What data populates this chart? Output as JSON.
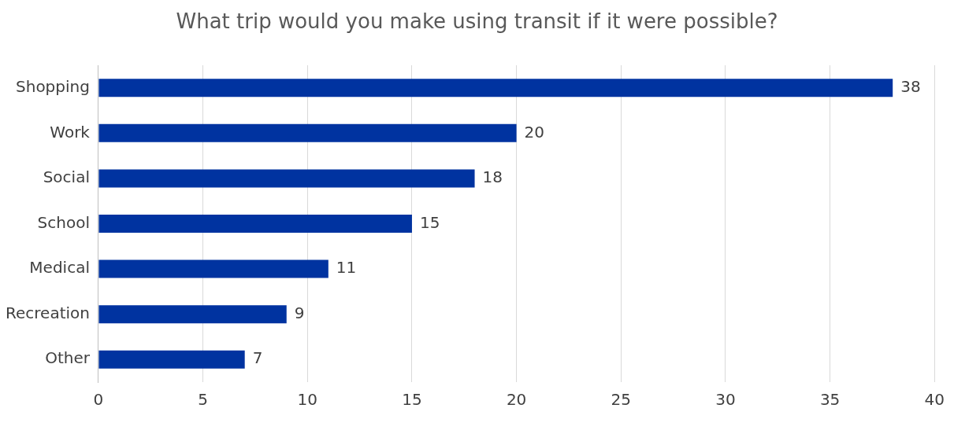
{
  "chart_data": {
    "type": "bar",
    "orientation": "horizontal",
    "title": "What trip would you make using transit if it were possible?",
    "categories": [
      "Shopping",
      "Work",
      "Social",
      "School",
      "Medical",
      "Recreation",
      "Other"
    ],
    "values": [
      38,
      20,
      18,
      15,
      11,
      9,
      7
    ],
    "color": "#0033a0",
    "xlim": [
      0,
      40
    ],
    "xticks": [
      0,
      5,
      10,
      15,
      20,
      25,
      30,
      35,
      40
    ],
    "grid": "x",
    "data_labels": true,
    "legend": false
  }
}
